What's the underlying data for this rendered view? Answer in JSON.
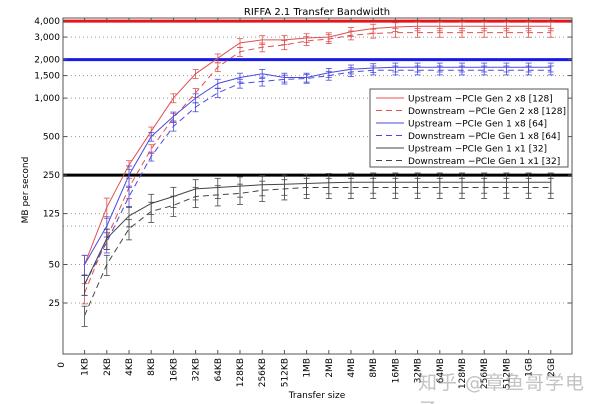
{
  "chart_data": {
    "type": "line",
    "title": "RIFFA 2.1 Transfer Bandwidth",
    "xlabel": "Transfer size",
    "ylabel": "MB per second",
    "yscale": "log2 (with 0 at bottom)",
    "ylim": [
      0,
      4000
    ],
    "yticks": [
      0,
      25,
      50,
      125,
      250,
      500,
      1000,
      1500,
      2000,
      3000,
      4000
    ],
    "ytick_labels": [
      "0",
      "25",
      "50",
      "125",
      "250",
      "500",
      "1,000",
      "1,500",
      "2,000",
      "3,000",
      "4,000"
    ],
    "grid": "dotted horizontal",
    "categories": [
      "1KB",
      "2KB",
      "4KB",
      "8KB",
      "16KB",
      "32KB",
      "64KB",
      "128KB",
      "256KB",
      "512KB",
      "1MB",
      "2MB",
      "4MB",
      "8MB",
      "16MB",
      "32MB",
      "64MB",
      "128MB",
      "256MB",
      "512MB",
      "1GB",
      "2GB"
    ],
    "reference_lines": [
      {
        "value": 4000,
        "color": "#e8141a"
      },
      {
        "value": 2000,
        "color": "#1a1ae8"
      },
      {
        "value": 250,
        "color": "#000000"
      }
    ],
    "legend_position": "center-right",
    "series": [
      {
        "name": "Upstream −PCIe Gen 2 x8 [128]",
        "color": "#e05050",
        "dash": false,
        "values": [
          50,
          140,
          300,
          550,
          1000,
          1550,
          2050,
          2700,
          2850,
          2850,
          2950,
          3000,
          3300,
          3500,
          3600,
          3650,
          3650,
          3650,
          3650,
          3650,
          3650,
          3650
        ]
      },
      {
        "name": "Downstream −PCIe Gen 2 x8 [128]",
        "color": "#e05050",
        "dash": true,
        "values": [
          30,
          80,
          200,
          400,
          700,
          1100,
          1750,
          2300,
          2500,
          2600,
          2800,
          2900,
          3100,
          3200,
          3250,
          3250,
          3250,
          3250,
          3250,
          3250,
          3250,
          3250
        ]
      },
      {
        "name": "Upstream −PCIe Gen 1 x8 [64]",
        "color": "#4a4ae0",
        "dash": false,
        "values": [
          50,
          100,
          250,
          500,
          720,
          1000,
          1300,
          1450,
          1550,
          1450,
          1450,
          1580,
          1680,
          1720,
          1740,
          1740,
          1740,
          1740,
          1740,
          1740,
          1740,
          1740
        ]
      },
      {
        "name": "Downstream −PCIe Gen 1 x8 [64]",
        "color": "#4a4ae0",
        "dash": true,
        "values": [
          35,
          75,
          170,
          350,
          600,
          850,
          1100,
          1300,
          1350,
          1400,
          1420,
          1500,
          1600,
          1650,
          1650,
          1650,
          1650,
          1650,
          1650,
          1650,
          1650,
          1650
        ]
      },
      {
        "name": "Upstream −PCIe Gen 1 x1 [32]",
        "color": "#444444",
        "dash": false,
        "values": [
          35,
          80,
          120,
          150,
          170,
          195,
          200,
          205,
          210,
          212,
          215,
          218,
          220,
          220,
          220,
          220,
          220,
          220,
          220,
          220,
          220,
          220
        ]
      },
      {
        "name": "Downstream −PCIe Gen 1 x1 [32]",
        "color": "#444444",
        "dash": true,
        "values": [
          20,
          50,
          95,
          130,
          145,
          170,
          175,
          180,
          190,
          195,
          200,
          200,
          200,
          200,
          200,
          200,
          200,
          200,
          200,
          200,
          200,
          200
        ]
      }
    ]
  },
  "watermark": "知乎 @章鱼哥学电子"
}
